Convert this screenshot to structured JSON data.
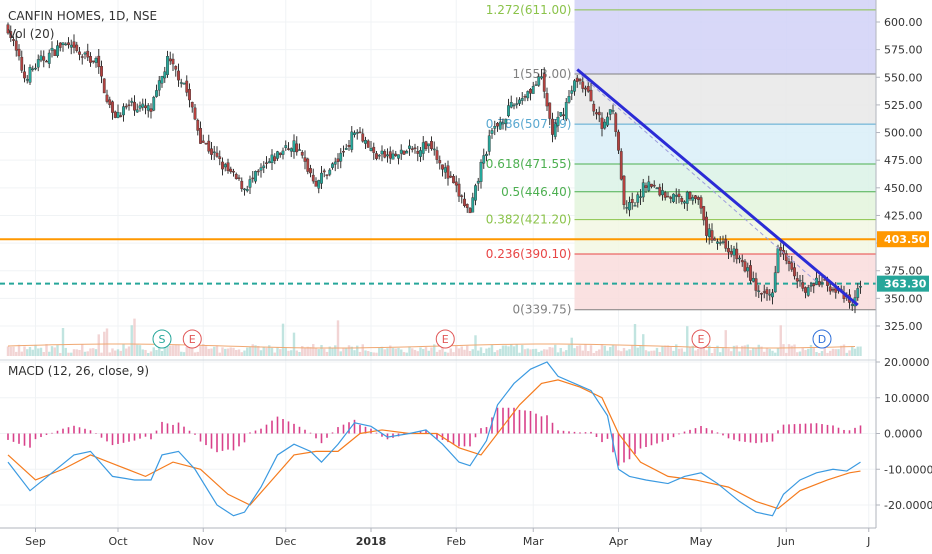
{
  "chart_data": [
    {
      "type": "candlestick",
      "title": "CANFIN HOMES, 1D, NSE",
      "volume_label": "Vol (20)",
      "ylim": [
        320,
        625
      ],
      "y_ticks": [
        "600.00",
        "575.00",
        "550.00",
        "525.00",
        "500.00",
        "475.00",
        "450.00",
        "425.00",
        "400.00",
        "375.00",
        "350.00",
        "325.00"
      ],
      "x_ticks": [
        {
          "label": "Sep",
          "day": 10
        },
        {
          "label": "Oct",
          "day": 40
        },
        {
          "label": "Nov",
          "day": 71
        },
        {
          "label": "Dec",
          "day": 101
        },
        {
          "label": "2018",
          "day": 132
        },
        {
          "label": "Feb",
          "day": 163
        },
        {
          "label": "Mar",
          "day": 191
        },
        {
          "label": "Apr",
          "day": 222
        },
        {
          "label": "May",
          "day": 252
        },
        {
          "label": "Jun",
          "day": 283
        },
        {
          "label": "J",
          "day": 313
        }
      ],
      "price_axis_tags": [
        {
          "label": "403.50",
          "value": 403.5,
          "color": "#ff9800"
        },
        {
          "label": "363.30",
          "value": 363.3,
          "color": "#26a69a"
        }
      ],
      "horizontal_lines": [
        {
          "value": 403.5,
          "color": "#ff9800",
          "style": "solid"
        },
        {
          "value": 363.3,
          "color": "#26a69a",
          "style": "dashed"
        }
      ],
      "fibonacci": {
        "start_day": 206,
        "levels": [
          {
            "label": "1.272(611.00)",
            "value": 611.0,
            "color": "#8bc34a"
          },
          {
            "label": "1(553.00)",
            "value": 553.0,
            "color": "#808080"
          },
          {
            "label": "0.786(507.59)",
            "value": 507.59,
            "color": "#59a8d0"
          },
          {
            "label": "0.618(471.55)",
            "value": 471.55,
            "color": "#4caf50"
          },
          {
            "label": "0.5(446.40)",
            "value": 446.4,
            "color": "#4caf50"
          },
          {
            "label": "0.382(421.20)",
            "value": 421.2,
            "color": "#8bc34a"
          },
          {
            "label": "0.236(390.10)",
            "value": 390.1,
            "color": "#e84545"
          },
          {
            "label": "0(339.75)",
            "value": 339.75,
            "color": "#808080"
          }
        ],
        "bands": [
          {
            "from": 553.0,
            "to": 625.0,
            "color": "#d1d1f7"
          },
          {
            "from": 507.59,
            "to": 553.0,
            "color": "#e8e8e8"
          },
          {
            "from": 471.55,
            "to": 507.59,
            "color": "#d9eef8"
          },
          {
            "from": 446.4,
            "to": 471.55,
            "color": "#daf2e6"
          },
          {
            "from": 421.2,
            "to": 446.4,
            "color": "#e3f5dc"
          },
          {
            "from": 390.1,
            "to": 421.2,
            "color": "#f2f7e3"
          },
          {
            "from": 339.75,
            "to": 390.1,
            "color": "#f9dcdc"
          }
        ]
      },
      "trendline": {
        "from": {
          "day": 207,
          "value": 557
        },
        "to": {
          "day": 309,
          "value": 344
        },
        "color": "#2b2bd6"
      },
      "events": [
        {
          "label": "S",
          "day": 56,
          "color": "#26a69a"
        },
        {
          "label": "E",
          "day": 67,
          "color": "#e05757"
        },
        {
          "label": "E",
          "day": 159,
          "color": "#e05757"
        },
        {
          "label": "E",
          "day": 252,
          "color": "#e05757"
        },
        {
          "label": "D",
          "day": 296,
          "color": "#2e6fd9"
        }
      ],
      "price_path": [
        {
          "day": 0,
          "close": 595
        },
        {
          "day": 6,
          "close": 550
        },
        {
          "day": 12,
          "close": 565
        },
        {
          "day": 20,
          "close": 580
        },
        {
          "day": 26,
          "close": 570
        },
        {
          "day": 32,
          "close": 565
        },
        {
          "day": 38,
          "close": 515
        },
        {
          "day": 45,
          "close": 525
        },
        {
          "day": 52,
          "close": 520
        },
        {
          "day": 58,
          "close": 565
        },
        {
          "day": 64,
          "close": 545
        },
        {
          "day": 70,
          "close": 495
        },
        {
          "day": 78,
          "close": 470
        },
        {
          "day": 86,
          "close": 450
        },
        {
          "day": 92,
          "close": 465
        },
        {
          "day": 98,
          "close": 480
        },
        {
          "day": 104,
          "close": 490
        },
        {
          "day": 112,
          "close": 455
        },
        {
          "day": 120,
          "close": 475
        },
        {
          "day": 127,
          "close": 505
        },
        {
          "day": 133,
          "close": 480
        },
        {
          "day": 140,
          "close": 478
        },
        {
          "day": 148,
          "close": 485
        },
        {
          "day": 154,
          "close": 490
        },
        {
          "day": 160,
          "close": 460
        },
        {
          "day": 165,
          "close": 440
        },
        {
          "day": 168,
          "close": 425
        },
        {
          "day": 172,
          "close": 470
        },
        {
          "day": 176,
          "close": 500
        },
        {
          "day": 182,
          "close": 520
        },
        {
          "day": 188,
          "close": 535
        },
        {
          "day": 194,
          "close": 548
        },
        {
          "day": 198,
          "close": 500
        },
        {
          "day": 202,
          "close": 520
        },
        {
          "day": 207,
          "close": 550
        },
        {
          "day": 212,
          "close": 530
        },
        {
          "day": 216,
          "close": 505
        },
        {
          "day": 220,
          "close": 525
        },
        {
          "day": 222,
          "close": 480
        },
        {
          "day": 223,
          "close": 460
        },
        {
          "day": 224,
          "close": 430
        },
        {
          "day": 228,
          "close": 435
        },
        {
          "day": 232,
          "close": 455
        },
        {
          "day": 238,
          "close": 445
        },
        {
          "day": 244,
          "close": 440
        },
        {
          "day": 250,
          "close": 445
        },
        {
          "day": 254,
          "close": 410
        },
        {
          "day": 260,
          "close": 400
        },
        {
          "day": 266,
          "close": 385
        },
        {
          "day": 270,
          "close": 370
        },
        {
          "day": 274,
          "close": 350
        },
        {
          "day": 278,
          "close": 355
        },
        {
          "day": 280,
          "close": 400
        },
        {
          "day": 284,
          "close": 385
        },
        {
          "day": 290,
          "close": 355
        },
        {
          "day": 294,
          "close": 365
        },
        {
          "day": 300,
          "close": 360
        },
        {
          "day": 304,
          "close": 350
        },
        {
          "day": 307,
          "close": 343
        },
        {
          "day": 310,
          "close": 363
        }
      ]
    },
    {
      "type": "line",
      "title": "MACD (12, 26, close, 9)",
      "ylim": [
        -25,
        21
      ],
      "y_ticks": [
        "20.0000",
        "10.0000",
        "0.0000",
        "-10.0000",
        "-20.0000"
      ],
      "macd_path": [
        {
          "day": 0,
          "value": -8
        },
        {
          "day": 8,
          "value": -16
        },
        {
          "day": 16,
          "value": -11
        },
        {
          "day": 24,
          "value": -6
        },
        {
          "day": 30,
          "value": -5
        },
        {
          "day": 38,
          "value": -12
        },
        {
          "day": 46,
          "value": -13
        },
        {
          "day": 52,
          "value": -13
        },
        {
          "day": 56,
          "value": -6
        },
        {
          "day": 62,
          "value": -5
        },
        {
          "day": 68,
          "value": -10
        },
        {
          "day": 76,
          "value": -20
        },
        {
          "day": 82,
          "value": -23
        },
        {
          "day": 86,
          "value": -22
        },
        {
          "day": 92,
          "value": -15
        },
        {
          "day": 98,
          "value": -6
        },
        {
          "day": 104,
          "value": -3
        },
        {
          "day": 110,
          "value": -5
        },
        {
          "day": 114,
          "value": -8
        },
        {
          "day": 120,
          "value": -3
        },
        {
          "day": 126,
          "value": 3
        },
        {
          "day": 132,
          "value": 2
        },
        {
          "day": 138,
          "value": -1
        },
        {
          "day": 146,
          "value": 0
        },
        {
          "day": 152,
          "value": 1
        },
        {
          "day": 158,
          "value": -3
        },
        {
          "day": 164,
          "value": -8
        },
        {
          "day": 168,
          "value": -9
        },
        {
          "day": 174,
          "value": -2
        },
        {
          "day": 178,
          "value": 8
        },
        {
          "day": 184,
          "value": 14
        },
        {
          "day": 190,
          "value": 18
        },
        {
          "day": 196,
          "value": 20
        },
        {
          "day": 200,
          "value": 16
        },
        {
          "day": 206,
          "value": 14
        },
        {
          "day": 212,
          "value": 12
        },
        {
          "day": 218,
          "value": 5
        },
        {
          "day": 222,
          "value": -10
        },
        {
          "day": 226,
          "value": -12
        },
        {
          "day": 232,
          "value": -13
        },
        {
          "day": 240,
          "value": -14
        },
        {
          "day": 246,
          "value": -12
        },
        {
          "day": 252,
          "value": -11
        },
        {
          "day": 258,
          "value": -14
        },
        {
          "day": 266,
          "value": -19
        },
        {
          "day": 272,
          "value": -22
        },
        {
          "day": 278,
          "value": -23
        },
        {
          "day": 282,
          "value": -17
        },
        {
          "day": 288,
          "value": -13
        },
        {
          "day": 294,
          "value": -11
        },
        {
          "day": 300,
          "value": -10
        },
        {
          "day": 305,
          "value": -10.5
        },
        {
          "day": 310,
          "value": -8
        }
      ],
      "signal_path": [
        {
          "day": 0,
          "value": -6
        },
        {
          "day": 10,
          "value": -13
        },
        {
          "day": 20,
          "value": -10
        },
        {
          "day": 30,
          "value": -6
        },
        {
          "day": 40,
          "value": -9
        },
        {
          "day": 50,
          "value": -12
        },
        {
          "day": 60,
          "value": -8
        },
        {
          "day": 70,
          "value": -10
        },
        {
          "day": 80,
          "value": -17
        },
        {
          "day": 88,
          "value": -20
        },
        {
          "day": 96,
          "value": -13
        },
        {
          "day": 104,
          "value": -6
        },
        {
          "day": 112,
          "value": -5
        },
        {
          "day": 120,
          "value": -5
        },
        {
          "day": 128,
          "value": 0
        },
        {
          "day": 136,
          "value": 1
        },
        {
          "day": 146,
          "value": 0
        },
        {
          "day": 156,
          "value": 0
        },
        {
          "day": 164,
          "value": -4
        },
        {
          "day": 172,
          "value": -6
        },
        {
          "day": 178,
          "value": 0
        },
        {
          "day": 186,
          "value": 8
        },
        {
          "day": 194,
          "value": 14
        },
        {
          "day": 200,
          "value": 15
        },
        {
          "day": 208,
          "value": 13
        },
        {
          "day": 216,
          "value": 10
        },
        {
          "day": 222,
          "value": 0
        },
        {
          "day": 230,
          "value": -8
        },
        {
          "day": 240,
          "value": -12
        },
        {
          "day": 250,
          "value": -13
        },
        {
          "day": 262,
          "value": -15
        },
        {
          "day": 272,
          "value": -19
        },
        {
          "day": 280,
          "value": -21
        },
        {
          "day": 288,
          "value": -16
        },
        {
          "day": 298,
          "value": -13
        },
        {
          "day": 306,
          "value": -11
        },
        {
          "day": 310,
          "value": -10.5
        }
      ]
    }
  ]
}
